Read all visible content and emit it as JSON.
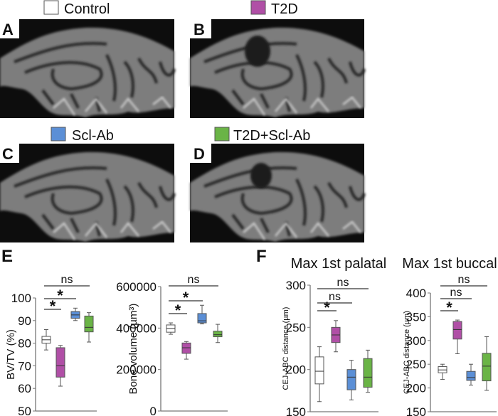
{
  "groups": [
    {
      "name": "Control",
      "color": "#ffffff"
    },
    {
      "name": "T2D",
      "color": "#b04fa6"
    },
    {
      "name": "Scl-Ab",
      "color": "#5b8fd6"
    },
    {
      "name": "T2D+Scl-Ab",
      "color": "#6ab446"
    }
  ],
  "panels": {
    "A": {
      "letter": "A",
      "group": "Control"
    },
    "B": {
      "letter": "B",
      "group": "T2D"
    },
    "C": {
      "letter": "C",
      "group": "Scl-Ab"
    },
    "D": {
      "letter": "D",
      "group": "T2D+Scl-Ab"
    },
    "E": {
      "letter": "E"
    },
    "F": {
      "letter": "F"
    }
  },
  "chart_data": [
    {
      "type": "box",
      "panel": "E",
      "title": "",
      "ylabel": "BV/TV (%)",
      "ylim": [
        50,
        100
      ],
      "yticks": [
        50,
        60,
        70,
        80,
        90,
        100
      ],
      "categories": [
        "Control",
        "T2D",
        "Scl-Ab",
        "T2D+Scl-Ab"
      ],
      "boxes": [
        {
          "min": 77,
          "q1": 80,
          "median": 81.5,
          "q3": 83,
          "max": 86
        },
        {
          "min": 61,
          "q1": 65,
          "median": 70,
          "q3": 78,
          "max": 79
        },
        {
          "min": 90,
          "q1": 91,
          "median": 92.5,
          "q3": 94,
          "max": 95.5
        },
        {
          "min": 80.5,
          "q1": 85,
          "median": 87,
          "q3": 92,
          "max": 93.5
        }
      ],
      "significance": [
        {
          "from": 0,
          "to": 1,
          "label": "*"
        },
        {
          "from": 0,
          "to": 2,
          "label": "*"
        },
        {
          "from": 0,
          "to": 3,
          "label": "ns"
        }
      ]
    },
    {
      "type": "box",
      "panel": "E",
      "title": "",
      "ylabel": "Bone volume (µm³)",
      "ylim": [
        0,
        600000
      ],
      "yticks": [
        0,
        200000,
        400000,
        600000
      ],
      "categories": [
        "Control",
        "T2D",
        "Scl-Ab",
        "T2D+Scl-Ab"
      ],
      "boxes": [
        {
          "min": 370000,
          "q1": 380000,
          "median": 398000,
          "q3": 415000,
          "max": 425000
        },
        {
          "min": 250000,
          "q1": 278000,
          "median": 305000,
          "q3": 328000,
          "max": 335000
        },
        {
          "min": 420000,
          "q1": 425000,
          "median": 435000,
          "q3": 470000,
          "max": 510000
        },
        {
          "min": 330000,
          "q1": 358000,
          "median": 368000,
          "q3": 385000,
          "max": 418000
        }
      ],
      "significance": [
        {
          "from": 0,
          "to": 1,
          "label": "*"
        },
        {
          "from": 0,
          "to": 2,
          "label": "*"
        },
        {
          "from": 0,
          "to": 3,
          "label": "ns"
        }
      ]
    },
    {
      "type": "box",
      "panel": "F",
      "title": "Max 1st palatal",
      "ylabel": "CEJ-ABC distance (µm)",
      "ylim": [
        150,
        300
      ],
      "yticks": [
        150,
        200,
        250,
        300
      ],
      "categories": [
        "Control",
        "T2D",
        "Scl-Ab",
        "T2D+Scl-Ab"
      ],
      "boxes": [
        {
          "min": 162,
          "q1": 183,
          "median": 198,
          "q3": 215,
          "max": 227
        },
        {
          "min": 221,
          "q1": 232,
          "median": 241,
          "q3": 250,
          "max": 258
        },
        {
          "min": 164,
          "q1": 176,
          "median": 191,
          "q3": 200,
          "max": 211
        },
        {
          "min": 173,
          "q1": 179,
          "median": 191,
          "q3": 213,
          "max": 223
        }
      ],
      "significance": [
        {
          "from": 0,
          "to": 1,
          "label": "*"
        },
        {
          "from": 0,
          "to": 2,
          "label": "ns"
        },
        {
          "from": 0,
          "to": 3,
          "label": "ns"
        }
      ]
    },
    {
      "type": "box",
      "panel": "F",
      "title": "Max 1st buccal",
      "ylabel": "CEJ-ABC distance (µm)",
      "ylim": [
        150,
        400
      ],
      "yticks": [
        150,
        200,
        250,
        300,
        350,
        400
      ],
      "categories": [
        "Control",
        "T2D",
        "Scl-Ab",
        "T2D+Scl-Ab"
      ],
      "boxes": [
        {
          "min": 218,
          "q1": 232,
          "median": 238,
          "q3": 245,
          "max": 250
        },
        {
          "min": 272,
          "q1": 303,
          "median": 323,
          "q3": 340,
          "max": 343
        },
        {
          "min": 206,
          "q1": 216,
          "median": 222,
          "q3": 235,
          "max": 250
        },
        {
          "min": 195,
          "q1": 215,
          "median": 246,
          "q3": 273,
          "max": 308
        }
      ],
      "significance": [
        {
          "from": 0,
          "to": 1,
          "label": "*"
        },
        {
          "from": 0,
          "to": 2,
          "label": "ns"
        },
        {
          "from": 0,
          "to": 3,
          "label": "ns"
        }
      ]
    }
  ]
}
